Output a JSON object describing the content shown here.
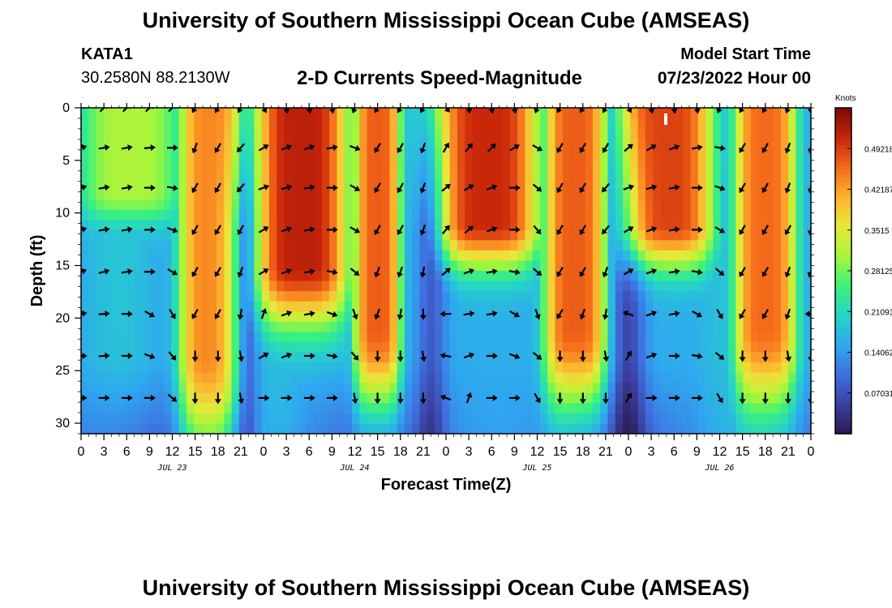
{
  "header": {
    "title": "University of Southern Mississippi Ocean Cube (AMSEAS)",
    "station": "KATA1",
    "coordinates": "30.2580N  88.2130W",
    "subtitle": "2-D Currents Speed-Magnitude",
    "model_start_label": "Model Start Time",
    "model_start_value": "07/23/2022 Hour 00"
  },
  "footer": {
    "title": "University of Southern Mississippi Ocean Cube (AMSEAS)"
  },
  "colors": {
    "arrow": "#000000",
    "palette": [
      "#2b1a4e",
      "#3a3f9e",
      "#3f6fe0",
      "#2fa7f0",
      "#25d4c8",
      "#3df27a",
      "#a8f53a",
      "#e8e83a",
      "#fdb32f",
      "#f56a1a",
      "#c8250a",
      "#7a0a05"
    ]
  },
  "chart_data": {
    "type": "heatmap",
    "title": "2-D Currents Speed-Magnitude",
    "xlabel": "Forecast Time(Z)",
    "ylabel": "Depth (ft)",
    "x_range_hours": [
      0,
      96
    ],
    "y_range_ft": [
      0,
      31
    ],
    "y_inverted": true,
    "x_tick_labels": [
      "0",
      "3",
      "6",
      "9",
      "12",
      "15",
      "18",
      "21",
      "0",
      "3",
      "6",
      "9",
      "12",
      "15",
      "18",
      "21",
      "0",
      "3",
      "6",
      "9",
      "12",
      "15",
      "18",
      "21",
      "0",
      "3",
      "6",
      "9",
      "12",
      "15",
      "18",
      "21",
      "0"
    ],
    "date_labels": [
      {
        "label": "JUL 23",
        "hour": 12
      },
      {
        "label": "JUL 24",
        "hour": 36
      },
      {
        "label": "JUL 25",
        "hour": 60
      },
      {
        "label": "JUL 26",
        "hour": 84
      }
    ],
    "y_ticks": [
      0,
      5,
      10,
      15,
      20,
      25,
      30
    ],
    "colorbar": {
      "unit": "Knots",
      "min": 0.0,
      "max": 0.5625,
      "ticks": [
        0.07031,
        0.14062,
        0.21093,
        0.28125,
        0.3515,
        0.42187,
        0.49218
      ],
      "tick_labels": [
        "0.07031",
        "0.14062",
        "0.21093",
        "0.28125",
        "0.3515",
        "0.42187",
        "0.49218"
      ]
    },
    "speed_model": {
      "note": "Approximate current speed (knots) read from the colour field",
      "surface_bands": [
        {
          "start_hour": 0,
          "end_hour": 13,
          "peak": 0.31,
          "depth_ft": 8
        },
        {
          "start_hour": 13,
          "end_hour": 21,
          "peak": 0.44,
          "depth_ft": 24
        },
        {
          "start_hour": 23,
          "end_hour": 35,
          "peak": 0.52,
          "depth_ft": 15
        },
        {
          "start_hour": 36,
          "end_hour": 42,
          "peak": 0.47,
          "depth_ft": 21
        },
        {
          "start_hour": 47,
          "end_hour": 60,
          "peak": 0.51,
          "depth_ft": 11
        },
        {
          "start_hour": 61,
          "end_hour": 69,
          "peak": 0.47,
          "depth_ft": 21
        },
        {
          "start_hour": 71,
          "end_hour": 83,
          "peak": 0.49,
          "depth_ft": 11
        },
        {
          "start_hour": 86,
          "end_hour": 94,
          "peak": 0.46,
          "depth_ft": 21
        }
      ],
      "deep_slack_hours": [
        21,
        46,
        72
      ],
      "background": 0.16
    },
    "vector_rows_ft": [
      0,
      3.8,
      7.6,
      11.6,
      15.6,
      19.6,
      23.6,
      27.6
    ],
    "vector_columns_hours": [
      0,
      3,
      6,
      9,
      12,
      15,
      18,
      21,
      24,
      27,
      30,
      33,
      36,
      39,
      42,
      45,
      48,
      51,
      54,
      57,
      60,
      63,
      66,
      69,
      72,
      75,
      78,
      81,
      84,
      87,
      90,
      93,
      96
    ],
    "vector_directions_deg": [
      [
        -45,
        -45,
        -45,
        -45,
        -45,
        120,
        120,
        120,
        60,
        80,
        80,
        80,
        110,
        120,
        120,
        120,
        50,
        80,
        80,
        80,
        110,
        120,
        120,
        120,
        60,
        80,
        80,
        80,
        110,
        120,
        120,
        110,
        90
      ],
      [
        -15,
        -10,
        -10,
        -5,
        0,
        110,
        120,
        130,
        -30,
        -20,
        -20,
        -10,
        20,
        120,
        120,
        110,
        -60,
        -50,
        -45,
        -30,
        30,
        120,
        120,
        120,
        -40,
        -30,
        -20,
        -10,
        10,
        120,
        120,
        110,
        100
      ],
      [
        -15,
        -10,
        -10,
        0,
        10,
        120,
        120,
        130,
        -20,
        -15,
        -10,
        0,
        30,
        120,
        120,
        110,
        -40,
        -30,
        -20,
        0,
        40,
        120,
        120,
        130,
        -20,
        -15,
        -10,
        0,
        20,
        120,
        120,
        110,
        100
      ],
      [
        -15,
        -10,
        -10,
        0,
        20,
        120,
        120,
        120,
        -30,
        -20,
        -10,
        0,
        30,
        120,
        120,
        110,
        -50,
        -40,
        -20,
        0,
        50,
        120,
        120,
        130,
        -30,
        -20,
        -10,
        0,
        30,
        120,
        120,
        120,
        100
      ],
      [
        -20,
        -15,
        -10,
        0,
        30,
        120,
        120,
        110,
        -30,
        -20,
        -10,
        10,
        40,
        110,
        110,
        100,
        -40,
        -20,
        -10,
        10,
        40,
        120,
        120,
        110,
        -30,
        -20,
        -10,
        10,
        40,
        120,
        120,
        110,
        110
      ],
      [
        -10,
        -5,
        0,
        30,
        60,
        120,
        120,
        100,
        -70,
        -20,
        -10,
        20,
        70,
        110,
        100,
        90,
        180,
        -10,
        -10,
        30,
        70,
        120,
        110,
        100,
        200,
        -20,
        -10,
        30,
        60,
        120,
        120,
        110,
        180
      ],
      [
        0,
        -5,
        0,
        20,
        50,
        90,
        90,
        80,
        -30,
        -20,
        0,
        10,
        50,
        90,
        90,
        80,
        190,
        -20,
        0,
        20,
        40,
        90,
        90,
        80,
        -60,
        -20,
        0,
        10,
        40,
        90,
        90,
        80,
        90
      ],
      [
        0,
        0,
        0,
        0,
        40,
        90,
        90,
        80,
        0,
        0,
        0,
        0,
        80,
        90,
        90,
        90,
        200,
        -70,
        0,
        0,
        60,
        90,
        90,
        90,
        -60,
        0,
        0,
        0,
        60,
        90,
        90,
        90,
        90
      ]
    ]
  }
}
